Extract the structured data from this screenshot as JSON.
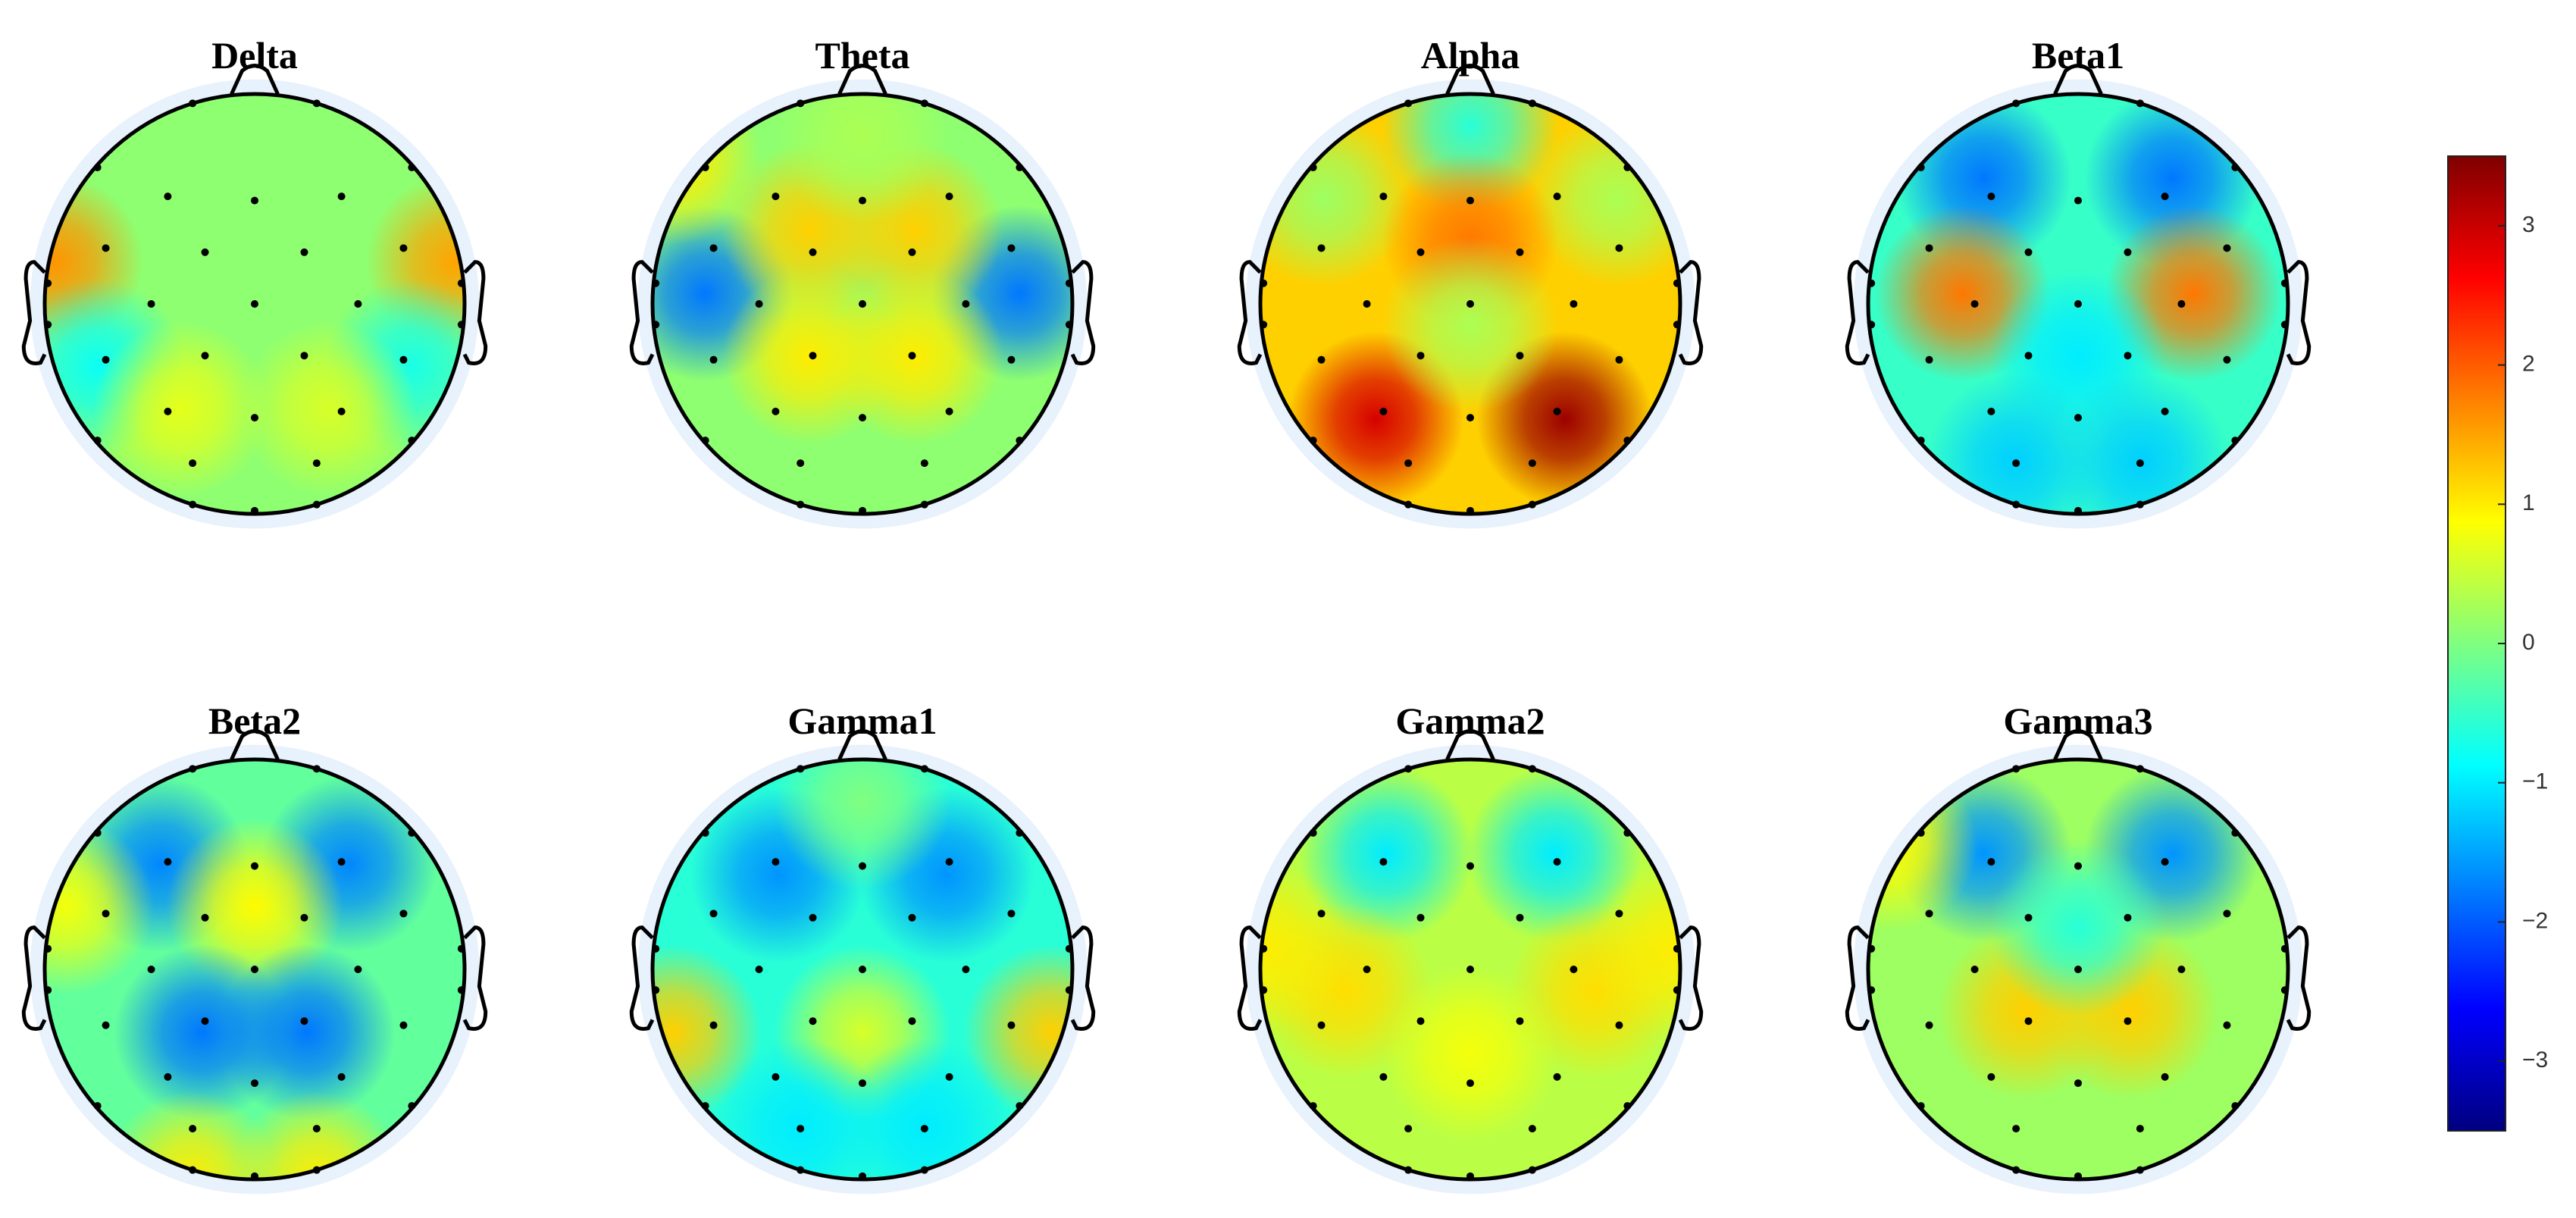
{
  "chart_data": [
    {
      "type": "topomap",
      "title": "Delta",
      "base": 0.1,
      "x": [
        -0.95,
        0.95,
        -0.75,
        0.75,
        -0.35,
        0.35
      ],
      "y": [
        0.2,
        0.2,
        -0.3,
        -0.3,
        -0.5,
        -0.5
      ],
      "values": [
        1.6,
        1.5,
        -0.8,
        -0.7,
        0.7,
        0.6
      ]
    },
    {
      "type": "topomap",
      "title": "Theta",
      "base": 0.1,
      "x": [
        -0.75,
        0.75,
        -0.25,
        0.25,
        -0.25,
        0.25,
        -0.9,
        0
      ],
      "y": [
        0.05,
        0.05,
        0.35,
        0.35,
        -0.25,
        -0.25,
        0.7,
        0.8
      ],
      "values": [
        -1.8,
        -1.8,
        1.2,
        1.2,
        1.0,
        1.0,
        1.0,
        0.3
      ]
    },
    {
      "type": "topomap",
      "title": "Alpha",
      "base": 1.2,
      "x": [
        -0.45,
        0.45,
        0,
        -0.7,
        0.7,
        0,
        0
      ],
      "y": [
        -0.55,
        -0.55,
        0.85,
        0.5,
        0.5,
        0.3,
        -0.1
      ],
      "values": [
        2.9,
        3.3,
        -0.6,
        0.2,
        0.3,
        1.8,
        0.3
      ]
    },
    {
      "type": "topomap",
      "title": "Beta1",
      "base": -0.5,
      "x": [
        -0.45,
        0.45,
        -0.55,
        0.55,
        0,
        -0.3,
        0.3
      ],
      "y": [
        0.6,
        0.6,
        0.05,
        0.05,
        -0.25,
        -0.75,
        -0.75
      ],
      "values": [
        -1.8,
        -1.8,
        1.8,
        1.8,
        -1.0,
        -1.2,
        -1.2
      ]
    },
    {
      "type": "topomap",
      "title": "Beta2",
      "base": -0.2,
      "x": [
        -0.45,
        0.45,
        0,
        -0.25,
        0.25,
        -0.9,
        -0.3,
        0.3
      ],
      "y": [
        0.5,
        0.5,
        0.3,
        -0.3,
        -0.3,
        0.3,
        -1.0,
        -1.0
      ],
      "values": [
        -1.7,
        -1.7,
        0.9,
        -1.8,
        -1.8,
        0.8,
        1.0,
        1.0
      ]
    },
    {
      "type": "topomap",
      "title": "Gamma1",
      "base": -0.6,
      "x": [
        -0.4,
        0.4,
        -0.9,
        0.9,
        0,
        0,
        -0.3,
        0.3
      ],
      "y": [
        0.45,
        0.45,
        -0.3,
        -0.3,
        -0.3,
        0.8,
        -0.75,
        -0.75
      ],
      "values": [
        -1.6,
        -1.6,
        1.2,
        1.2,
        0.6,
        0,
        -1.0,
        -1.0
      ]
    },
    {
      "type": "topomap",
      "title": "Gamma2",
      "base": 0.4,
      "x": [
        -0.4,
        0.4,
        -0.6,
        0.6,
        -0.98,
        0.98,
        0
      ],
      "y": [
        0.55,
        0.55,
        -0.1,
        -0.1,
        0.1,
        0.1,
        -0.4
      ],
      "values": [
        -1.0,
        -1.0,
        1.1,
        1.1,
        1.0,
        1.0,
        0.8
      ]
    },
    {
      "type": "topomap",
      "title": "Gamma3",
      "base": 0.2,
      "x": [
        -0.45,
        0.45,
        -0.25,
        0.25,
        -0.9,
        0
      ],
      "y": [
        0.55,
        0.55,
        -0.2,
        -0.2,
        0.6,
        0.2
      ],
      "values": [
        -1.6,
        -1.6,
        1.2,
        1.2,
        0.9,
        -0.6
      ]
    }
  ],
  "colorbar": {
    "colormap": "jet",
    "clim": [
      -3.5,
      3.5
    ],
    "ticks": [
      {
        "value": -3,
        "label": "−3"
      },
      {
        "value": -2,
        "label": "−2"
      },
      {
        "value": -1,
        "label": "−1"
      },
      0,
      1,
      2,
      3
    ]
  }
}
